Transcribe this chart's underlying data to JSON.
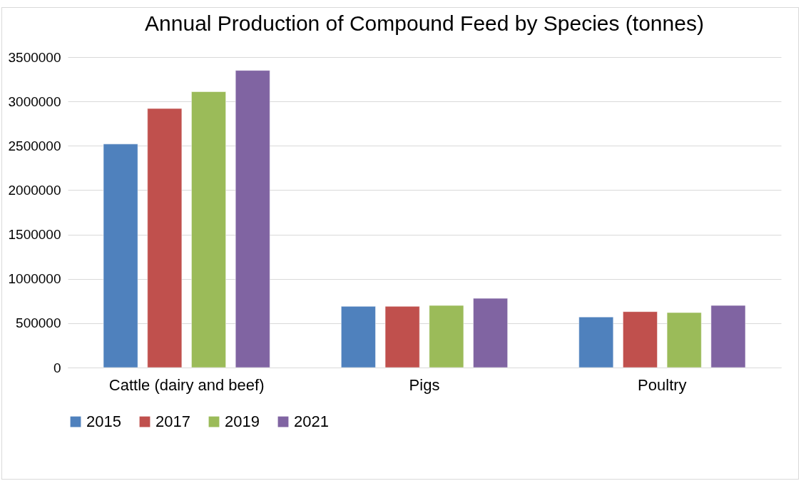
{
  "chart_data": {
    "type": "bar",
    "title": "Annual Production of Compound Feed by Species (tonnes)",
    "categories": [
      "Cattle (dairy and beef)",
      "Pigs",
      "Poultry"
    ],
    "series": [
      {
        "name": "2015",
        "color": "#4f81bd",
        "values": [
          2520000,
          690000,
          570000
        ]
      },
      {
        "name": "2017",
        "color": "#c0504d",
        "values": [
          2920000,
          690000,
          630000
        ]
      },
      {
        "name": "2019",
        "color": "#9bbb59",
        "values": [
          3110000,
          700000,
          620000
        ]
      },
      {
        "name": "2021",
        "color": "#8064a2",
        "values": [
          3350000,
          780000,
          700000
        ]
      }
    ],
    "ylim": [
      0,
      3500000
    ],
    "yticks": [
      0,
      500000,
      1000000,
      1500000,
      2000000,
      2500000,
      3000000,
      3500000
    ],
    "grid": "y",
    "legend": "bottom"
  }
}
